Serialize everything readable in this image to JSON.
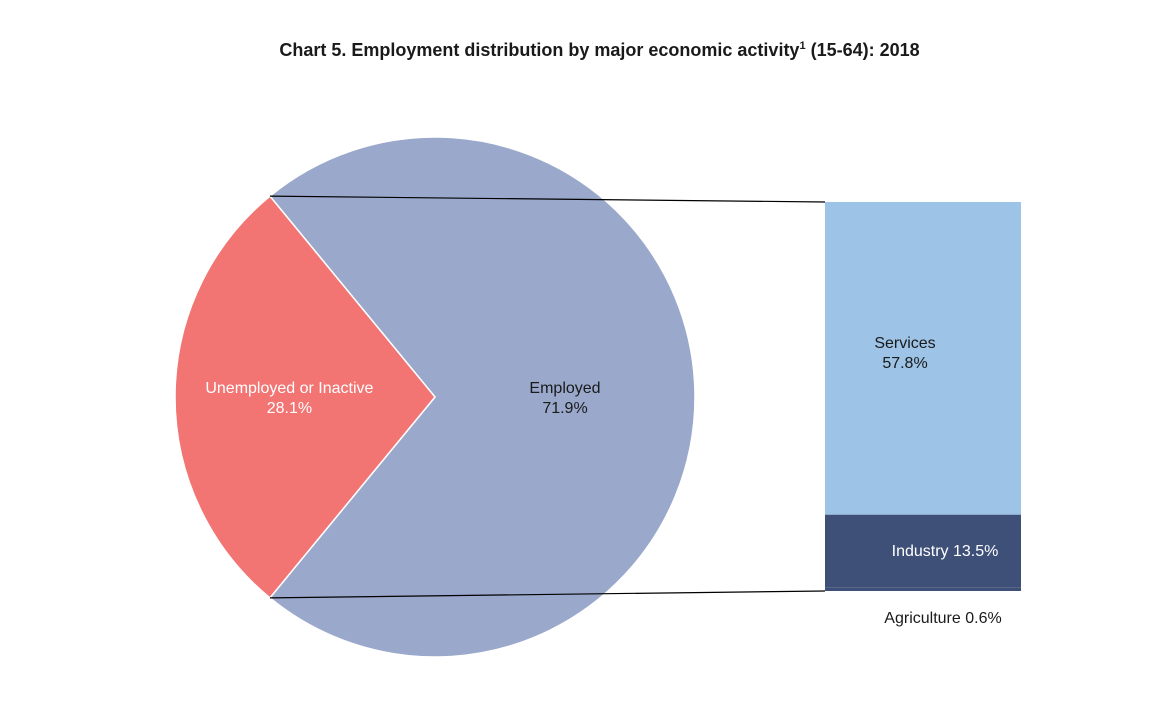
{
  "chart_data": {
    "type": "pie",
    "title": "Chart 5. Employment distribution by major economic activity",
    "title_superscript": "1",
    "title_suffix": " (15-64): 2018",
    "pie": {
      "slices": [
        {
          "name": "Employed",
          "value": 71.9,
          "label": "71.9%",
          "color": "#99a8cb",
          "text_color": "#1a1a1a"
        },
        {
          "name": "Unemployed or Inactive",
          "value": 28.1,
          "label": "28.1%",
          "color": "#f27573",
          "text_color": "#ffffff"
        }
      ]
    },
    "breakdown_bar": {
      "of": "Employed",
      "segments": [
        {
          "name": "Services",
          "value": 57.8,
          "label": "57.8%",
          "color": "#9dc3e6",
          "text_color": "#1a1a1a"
        },
        {
          "name": "Industry",
          "value": 13.5,
          "label": "13.5%",
          "color": "#3e5078",
          "text_color": "#ffffff"
        },
        {
          "name": "Agriculture",
          "value": 0.6,
          "label": "0.6%",
          "color": "#3e5078",
          "text_color": "#1a1a1a"
        }
      ]
    },
    "connector_color": "#000000"
  }
}
